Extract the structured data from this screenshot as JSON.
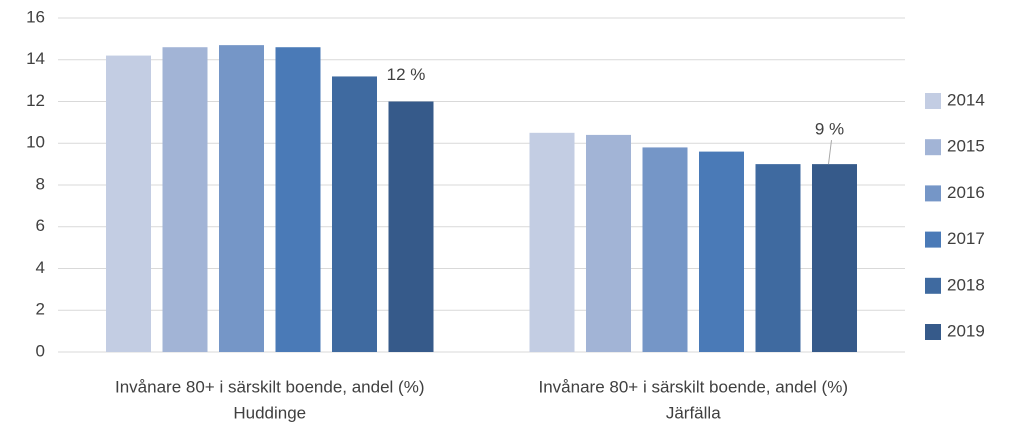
{
  "chart_data": {
    "type": "bar",
    "categories": [
      [
        "Invånare 80+ i särskilt boende, andel (%)",
        "Huddinge"
      ],
      [
        "Invånare 80+ i särskilt boende, andel (%)",
        "Järfälla"
      ]
    ],
    "series": [
      {
        "name": "2014",
        "color": "#c3cde3",
        "values": [
          14.2,
          10.5
        ]
      },
      {
        "name": "2015",
        "color": "#a2b4d6",
        "values": [
          14.6,
          10.4
        ]
      },
      {
        "name": "2016",
        "color": "#7596c7",
        "values": [
          14.7,
          9.8
        ]
      },
      {
        "name": "2017",
        "color": "#4a7ab7",
        "values": [
          14.6,
          9.6
        ]
      },
      {
        "name": "2018",
        "color": "#3f6aa0",
        "values": [
          13.2,
          9.0
        ]
      },
      {
        "name": "2019",
        "color": "#365a8a",
        "values": [
          12.0,
          9.0
        ],
        "value_labels": [
          "12 %",
          "9 %"
        ]
      }
    ],
    "ylim": [
      0,
      16
    ],
    "yticks": [
      0,
      2,
      4,
      6,
      8,
      10,
      12,
      14,
      16
    ],
    "grid": true,
    "legend": "right"
  }
}
